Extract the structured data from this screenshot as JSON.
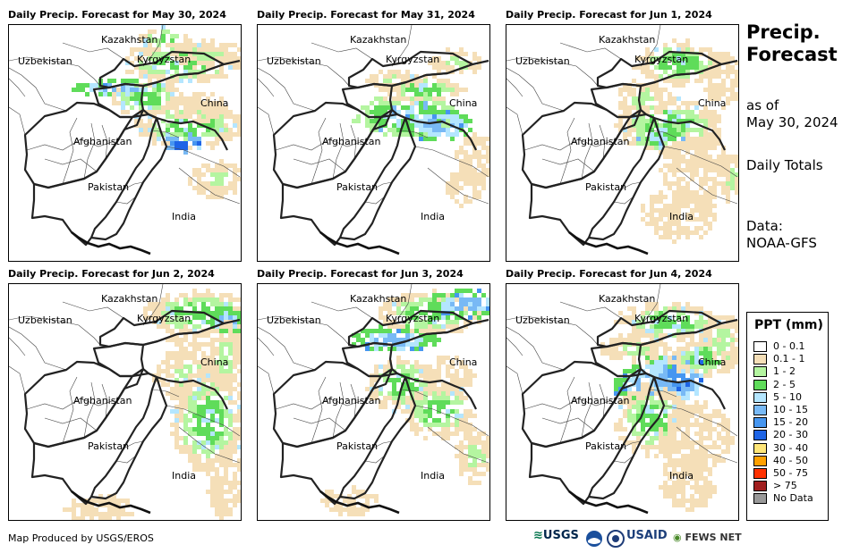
{
  "panels": [
    {
      "title": "Daily Precip. Forecast for May 30, 2024"
    },
    {
      "title": "Daily Precip. Forecast for May 31, 2024"
    },
    {
      "title": "Daily Precip. Forecast for Jun 1, 2024"
    },
    {
      "title": "Daily Precip. Forecast for Jun 2, 2024"
    },
    {
      "title": "Daily Precip. Forecast for Jun 3, 2024"
    },
    {
      "title": "Daily Precip. Forecast for Jun 4, 2024"
    }
  ],
  "map_labels": {
    "kazakhstan": "Kazakhstan",
    "uzbekistan": "Uzbekistan",
    "kyrgyzstan": "Kyrgyzstan",
    "china": "China",
    "afghanistan": "Afghanistan",
    "pakistan": "Pakistan",
    "india": "India"
  },
  "sidebar": {
    "title_line1": "Precip.",
    "title_line2": "Forecast",
    "asof_line1": "as of",
    "asof_line2": "May 30, 2024",
    "totals": "Daily Totals",
    "data_line1": "Data:",
    "data_line2": "NOAA-GFS"
  },
  "legend": {
    "title": "PPT (mm)",
    "items": [
      {
        "label": "0 - 0.1",
        "color": "#ffffff"
      },
      {
        "label": "0.1 - 1",
        "color": "#f5dfb8"
      },
      {
        "label": "1 - 2",
        "color": "#b4f5a0"
      },
      {
        "label": "2 - 5",
        "color": "#5fdc5a"
      },
      {
        "label": "5 - 10",
        "color": "#b4e6ff"
      },
      {
        "label": "10 - 15",
        "color": "#78b9f5"
      },
      {
        "label": "15 - 20",
        "color": "#4696f0"
      },
      {
        "label": "20 - 30",
        "color": "#1e64e6"
      },
      {
        "label": "30 - 40",
        "color": "#ffe678"
      },
      {
        "label": "40 - 50",
        "color": "#ffa000"
      },
      {
        "label": "50 - 75",
        "color": "#ff3200"
      },
      {
        "label": "> 75",
        "color": "#a01e1e"
      },
      {
        "label": "No Data",
        "color": "#999999"
      }
    ]
  },
  "footer": {
    "credit": "Map Produced by USGS/EROS",
    "logo_usgs": "USGS",
    "logo_usaid": "USAID",
    "logo_fews": "FEWS NET"
  }
}
